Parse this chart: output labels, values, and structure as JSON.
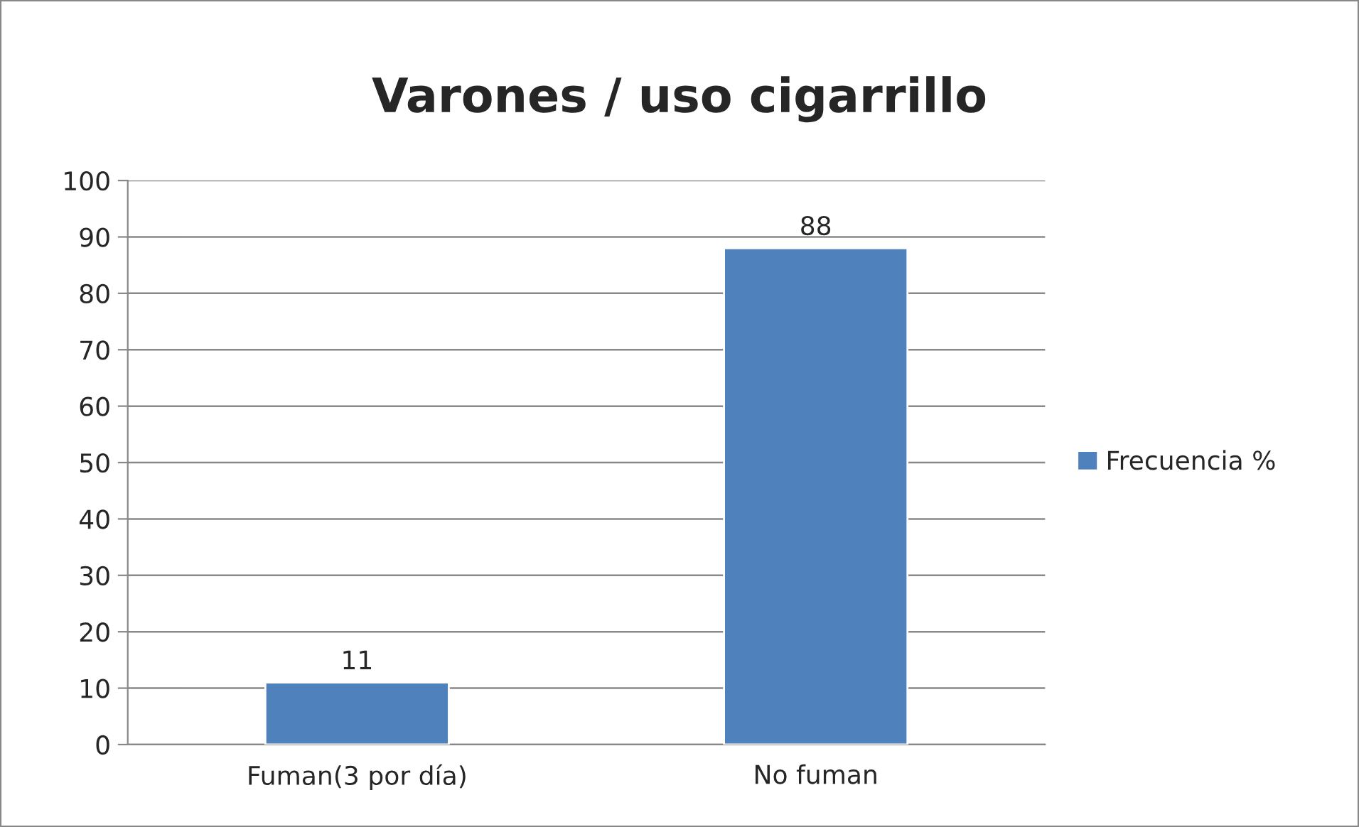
{
  "chart_data": {
    "type": "bar",
    "title": "Varones / uso cigarrillo",
    "categories": [
      "Fuman(3 por día)",
      "No fuman"
    ],
    "series": [
      {
        "name": "Frecuencia %",
        "color": "#4f81bd",
        "values": [
          11,
          88
        ]
      }
    ],
    "ylim": [
      0,
      100
    ],
    "yticks": [
      0,
      10,
      20,
      30,
      40,
      50,
      60,
      70,
      80,
      90,
      100
    ],
    "grid": "y",
    "legend": "right",
    "data_labels": true
  }
}
